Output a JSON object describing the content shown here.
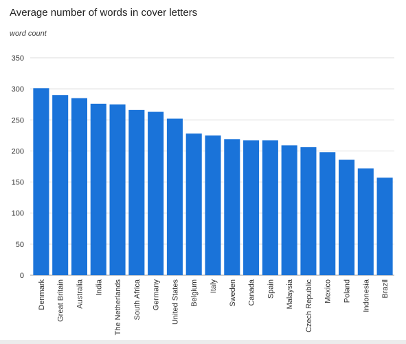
{
  "chart_data": {
    "type": "bar",
    "title": "Average number of words in cover letters",
    "ylabel": "word count",
    "xlabel": "",
    "ylim": [
      0,
      350
    ],
    "yticks": [
      0,
      50,
      100,
      150,
      200,
      250,
      300,
      350
    ],
    "grid": true,
    "legend": "none",
    "bar_color": "#1a73d9",
    "grid_color": "#dddddd",
    "categories": [
      "Denmark",
      "Great Britain",
      "Australia",
      "India",
      "The Netherlands",
      "South Africa",
      "Germany",
      "United States",
      "Belgium",
      "Italy",
      "Sweden",
      "Canada",
      "Spain",
      "Malaysia",
      "Czech Republic",
      "Mexico",
      "Poland",
      "Indonesia",
      "Brazil"
    ],
    "values": [
      301,
      290,
      285,
      276,
      275,
      266,
      263,
      252,
      228,
      225,
      219,
      217,
      217,
      209,
      206,
      198,
      186,
      172,
      157
    ]
  }
}
